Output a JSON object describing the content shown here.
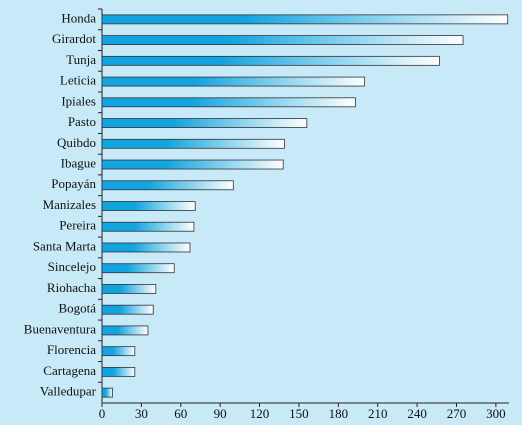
{
  "chart_data": {
    "type": "bar",
    "orientation": "horizontal",
    "categories": [
      "Honda",
      "Girardot",
      "Tunja",
      "Leticia",
      "Ipiales",
      "Pasto",
      "Quibdo",
      "Ibague",
      "Popayán",
      "Manizales",
      "Pereira",
      "Santa Marta",
      "Sincelejo",
      "Riohacha",
      "Bogotá",
      "Buenaventura",
      "Florencia",
      "Cartagena",
      "Valledupar"
    ],
    "values": [
      309,
      275,
      257,
      200,
      193,
      156,
      139,
      138,
      100,
      71,
      70,
      67,
      55,
      41,
      39,
      35,
      25,
      25,
      8
    ],
    "color": "#12a4df",
    "xlim": [
      0,
      310
    ],
    "xticks": [
      0,
      30,
      60,
      90,
      120,
      150,
      180,
      210,
      240,
      270,
      300
    ],
    "grid": false
  }
}
